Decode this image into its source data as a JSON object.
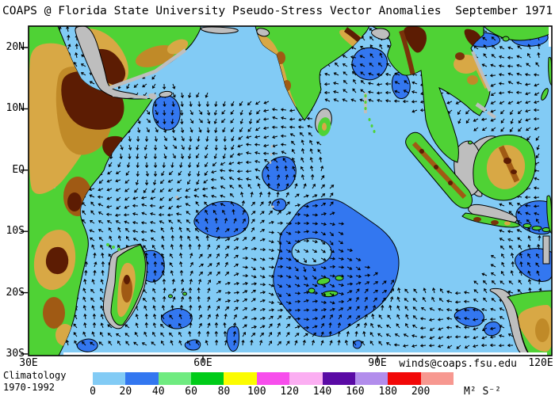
{
  "title": "COAPS @ Florida State University Pseudo-Stress Vector Anomalies  September 1971",
  "axes": {
    "lat": [
      "20N",
      "10N",
      "EQ",
      "10S",
      "20S",
      "30S"
    ],
    "lon": [
      "30E",
      "60E",
      "90E",
      "120E"
    ]
  },
  "credit": "winds@coaps.fsu.edu",
  "legend": {
    "climatology": [
      "Climatology",
      "1970-1992"
    ],
    "values": [
      "0",
      "20",
      "40",
      "60",
      "80",
      "100",
      "120",
      "140",
      "160",
      "180",
      "200"
    ],
    "units": "M² S⁻²",
    "colors": [
      "#82CBF5",
      "#3377F0",
      "#6FEB80",
      "#00CC19",
      "#FCFC00",
      "#F74EEC",
      "#FBAEF2",
      "#5A0AA5",
      "#B28DEC",
      "#F20808",
      "#F79890"
    ]
  },
  "map_colors": {
    "ocean": "#82CBF5",
    "anomaly": "#3377F0",
    "land_green": "#4FD235",
    "land_yellowgreen": "#A8D434",
    "land_tan": "#D8A845",
    "land_gold": "#C08A28",
    "land_brown": "#A05A14",
    "land_darkbrown": "#7A330A",
    "land_maroon": "#5C1C03",
    "shelf_gray": "#BEBEBE",
    "white_band": "#FFFFFF",
    "arrow": "#000000",
    "frame": "#000000"
  }
}
